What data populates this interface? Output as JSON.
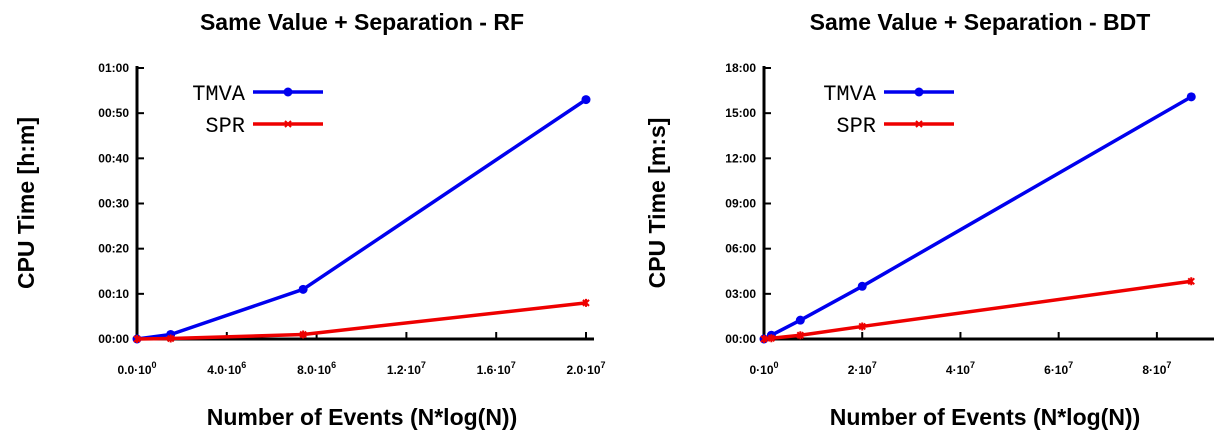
{
  "chart_data": [
    {
      "type": "line",
      "title": "Same Value + Separation - RF",
      "xlabel": "Number of Events (N*log(N))",
      "ylabel": "CPU Time [h:m]",
      "xlim": [
        0,
        20000000
      ],
      "ylim": [
        0,
        60
      ],
      "x_ticks": [
        {
          "value": 0,
          "mant": "0.0",
          "exp": "0"
        },
        {
          "value": 4000000,
          "mant": "4.0",
          "exp": "6"
        },
        {
          "value": 8000000,
          "mant": "8.0",
          "exp": "6"
        },
        {
          "value": 12000000,
          "mant": "1.2",
          "exp": "7"
        },
        {
          "value": 16000000,
          "mant": "1.6",
          "exp": "7"
        },
        {
          "value": 20000000,
          "mant": "2.0",
          "exp": "7"
        }
      ],
      "y_ticks": [
        {
          "value": 0,
          "label": "00:00"
        },
        {
          "value": 10,
          "label": "00:10"
        },
        {
          "value": 20,
          "label": "00:20"
        },
        {
          "value": 30,
          "label": "00:30"
        },
        {
          "value": 40,
          "label": "00:40"
        },
        {
          "value": 50,
          "label": "00:50"
        },
        {
          "value": 60,
          "label": "01:00"
        }
      ],
      "legend_position": "top-left",
      "series": [
        {
          "name": "TMVA",
          "color": "#0000ee",
          "marker": "circle",
          "x": [
            0,
            1500000,
            7400000,
            20000000
          ],
          "y": [
            0,
            1,
            11,
            53
          ]
        },
        {
          "name": "SPR",
          "color": "#ee0000",
          "marker": "star",
          "x": [
            0,
            1500000,
            7400000,
            20000000
          ],
          "y": [
            0,
            0.1,
            1,
            8
          ]
        }
      ]
    },
    {
      "type": "line",
      "title": "Same Value + Separation - BDT",
      "xlabel": "Number of Events (N*log(N))",
      "ylabel": "CPU Time [m:s]",
      "xlim": [
        0,
        90000000
      ],
      "ylim": [
        0,
        1080
      ],
      "x_ticks": [
        {
          "value": 0,
          "mant": "0",
          "exp": "0"
        },
        {
          "value": 20000000,
          "mant": "2",
          "exp": "7"
        },
        {
          "value": 40000000,
          "mant": "4",
          "exp": "7"
        },
        {
          "value": 60000000,
          "mant": "6",
          "exp": "7"
        },
        {
          "value": 80000000,
          "mant": "8",
          "exp": "7"
        }
      ],
      "y_ticks": [
        {
          "value": 0,
          "label": "00:00"
        },
        {
          "value": 180,
          "label": "03:00"
        },
        {
          "value": 360,
          "label": "06:00"
        },
        {
          "value": 540,
          "label": "09:00"
        },
        {
          "value": 720,
          "label": "12:00"
        },
        {
          "value": 900,
          "label": "15:00"
        },
        {
          "value": 1080,
          "label": "18:00"
        }
      ],
      "legend_position": "top-left",
      "series": [
        {
          "name": "TMVA",
          "color": "#0000ee",
          "marker": "circle",
          "x": [
            0,
            1500000,
            7400000,
            20000000,
            87000000
          ],
          "y": [
            0,
            15,
            75,
            210,
            965
          ]
        },
        {
          "name": "SPR",
          "color": "#ee0000",
          "marker": "star",
          "x": [
            0,
            1500000,
            7400000,
            20000000,
            87000000
          ],
          "y": [
            0,
            3,
            15,
            50,
            230
          ]
        }
      ]
    }
  ]
}
